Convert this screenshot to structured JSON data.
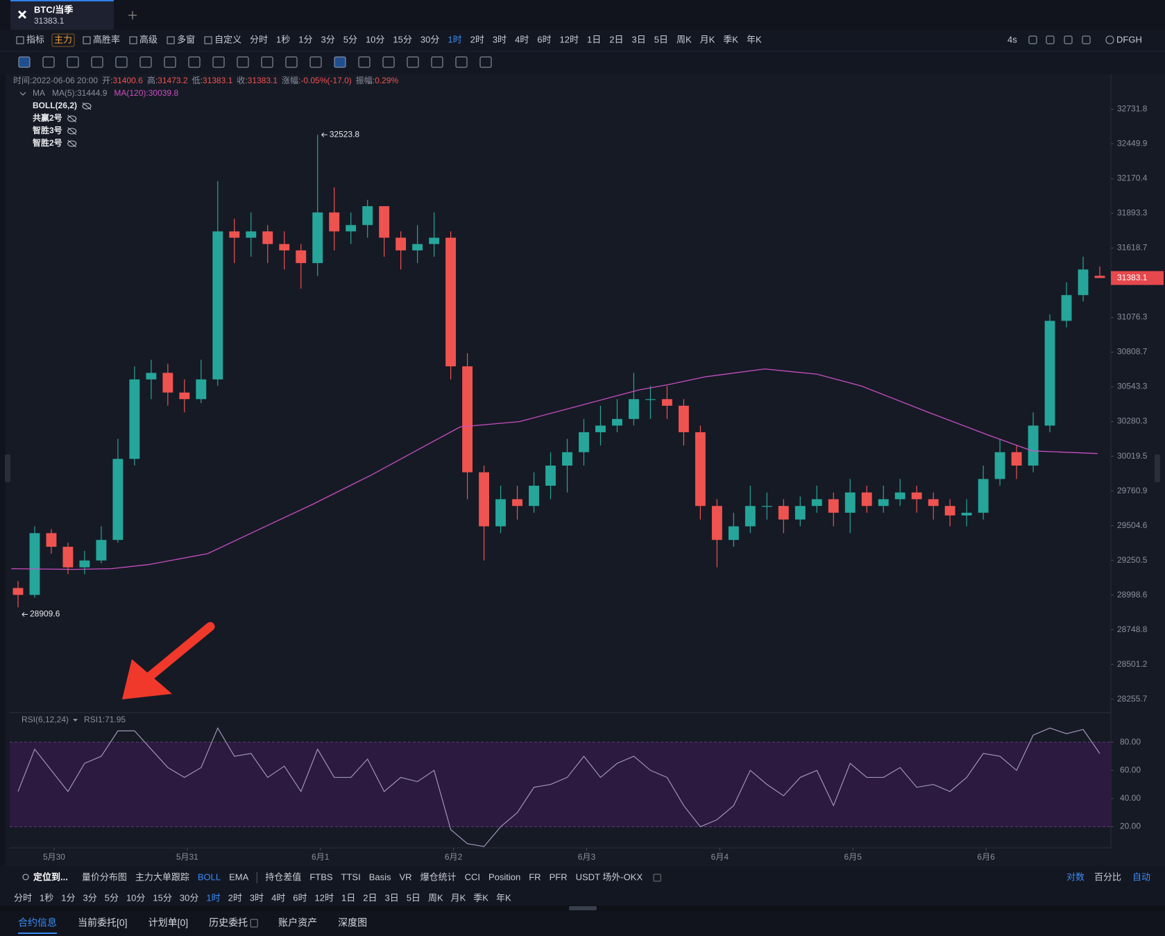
{
  "tab": {
    "symbol": "BTC/当季"
  },
  "toolbar": {
    "left": [
      "指标",
      "主力",
      "高胜率",
      "高级",
      "多窗",
      "自定义"
    ],
    "intervals": [
      "分时",
      "1秒",
      "1分",
      "3分",
      "5分",
      "10分",
      "15分",
      "30分",
      "1时",
      "2时",
      "3时",
      "4时",
      "6时",
      "12时",
      "1日",
      "2日",
      "3日",
      "5日",
      "周K",
      "月K",
      "季K",
      "年K"
    ],
    "right": [
      "4s",
      "DFGH"
    ]
  },
  "info": {
    "time_label": "时间:",
    "time": "2022-06-06 20:00",
    "open_label": "开:",
    "high_label": "高:",
    "low_label": "低:",
    "close_label": "收:",
    "change_label": "涨幅:",
    "change": "-0.05%(-17.0)",
    "amplitude_label": "振幅:",
    "amplitude": "0.29%"
  },
  "indicators": {
    "ma": "MA",
    "ma5": "MA(5):31444.9",
    "ma120": "MA(120):30039.8",
    "others": [
      "BOLL(26,2)",
      "共赢2号",
      "智胜3号",
      "智胜2号"
    ]
  },
  "chart_data": {
    "type": "candlestick",
    "yscale": "log",
    "up_color": "#26a69a",
    "down_color": "#ef5350",
    "x": [
      1.5,
      4.5,
      7.5,
      10.5,
      13.5,
      16.5,
      19.5,
      22.5,
      25.5,
      28.5,
      31.5,
      34.5,
      37.5,
      40.5,
      43.5,
      46.5,
      49.5,
      52.5,
      55.5,
      58.5,
      61.5,
      64.5,
      67.5,
      70.5,
      73.5,
      76.5,
      79.5,
      82.5,
      85.5,
      88.5,
      91.5,
      94.5,
      97.5,
      100.5,
      103.5,
      106.5,
      109.5,
      112.5,
      115.5,
      118.5,
      121.5,
      124.5,
      127.5,
      130.5,
      133.5,
      136.5,
      139.5,
      142.5,
      145.5,
      148.5,
      151.5,
      154.5,
      157.5,
      160.5,
      163.5,
      166.5,
      169.5,
      172.5,
      175.5,
      178.5,
      181.5,
      184.5,
      187.5,
      190.5,
      193.5,
      196.5
    ],
    "open": [
      29050,
      29000,
      29450,
      29350,
      29200,
      29250,
      29400,
      30000,
      30600,
      30650,
      30500,
      30450,
      30600,
      31750,
      31700,
      31750,
      31650,
      31600,
      31500,
      31900,
      31750,
      31800,
      31950,
      31700,
      31600,
      31650,
      31700,
      30700,
      29900,
      29500,
      29700,
      29650,
      29800,
      29950,
      30050,
      30200,
      30250,
      30300,
      30450,
      30450,
      30400,
      30200,
      29650,
      29400,
      29500,
      29650,
      29650,
      29550,
      29650,
      29700,
      29600,
      29750,
      29650,
      29700,
      29750,
      29700,
      29650,
      29580,
      29600,
      29850,
      30050,
      29950,
      30250,
      31050,
      31250,
      31400.6
    ],
    "high": [
      29100,
      29500,
      29480,
      29380,
      29320,
      29500,
      30150,
      30700,
      30750,
      30720,
      30600,
      30750,
      32150,
      31850,
      31900,
      31800,
      31750,
      31650,
      32523.8,
      32100,
      31900,
      32000,
      31950,
      31750,
      31800,
      31900,
      31750,
      30800,
      29950,
      29800,
      29800,
      29900,
      30050,
      30150,
      30300,
      30400,
      30450,
      30650,
      30550,
      30550,
      30450,
      30250,
      29700,
      29600,
      29800,
      29750,
      29700,
      29720,
      29800,
      29750,
      29850,
      29800,
      29800,
      29850,
      29800,
      29750,
      29700,
      29700,
      29950,
      30150,
      30100,
      30350,
      31100,
      31350,
      31550,
      31473.2
    ],
    "low": [
      28909.6,
      28980,
      29300,
      29150,
      29150,
      29230,
      29380,
      29950,
      30450,
      30400,
      30350,
      30420,
      30550,
      31500,
      31550,
      31500,
      31450,
      31300,
      31400,
      31600,
      31650,
      31700,
      31550,
      31450,
      31500,
      31550,
      30600,
      29700,
      29250,
      29450,
      29550,
      29600,
      29700,
      29750,
      29950,
      30100,
      30200,
      30250,
      30300,
      30300,
      30100,
      29550,
      29200,
      29350,
      29450,
      29550,
      29450,
      29500,
      29600,
      29500,
      29450,
      29600,
      29600,
      29650,
      29600,
      29550,
      29500,
      29500,
      29550,
      29800,
      29850,
      29900,
      30200,
      31000,
      31200,
      31383.1
    ],
    "close": [
      29000,
      29450,
      29350,
      29200,
      29250,
      29400,
      30000,
      30600,
      30650,
      30500,
      30450,
      30600,
      31750,
      31700,
      31750,
      31650,
      31600,
      31500,
      31900,
      31750,
      31800,
      31950,
      31700,
      31600,
      31650,
      31700,
      30700,
      29900,
      29500,
      29700,
      29650,
      29800,
      29950,
      30050,
      30200,
      30250,
      30300,
      30450,
      30450,
      30400,
      30200,
      29650,
      29400,
      29500,
      29650,
      29650,
      29550,
      29650,
      29700,
      29600,
      29750,
      29650,
      29700,
      29750,
      29700,
      29650,
      29580,
      29600,
      29850,
      30050,
      29950,
      30250,
      31050,
      31250,
      31450,
      31383.1
    ],
    "xlim": [
      0,
      198.5
    ],
    "xticks": [
      {
        "value": 8,
        "label": "5月30"
      },
      {
        "value": 32,
        "label": "5月31"
      },
      {
        "value": 56,
        "label": "6月1"
      },
      {
        "value": 80,
        "label": "6月2"
      },
      {
        "value": 104,
        "label": "6月3"
      },
      {
        "value": 128,
        "label": "6月4"
      },
      {
        "value": 152,
        "label": "6月5"
      },
      {
        "value": 176,
        "label": "6月6"
      }
    ],
    "ylim": [
      28166.8,
      33018
    ],
    "yticks": [
      32731.8,
      32449.9,
      32170.4,
      31893.3,
      31618.7,
      31076.3,
      30808.7,
      30543.3,
      30280.3,
      30019.5,
      29760.9,
      29504.6,
      29250.5,
      28998.6,
      28748.8,
      28501.2,
      28255.7
    ],
    "ma120": {
      "color": "#c94fc0",
      "x": [
        0.3,
        11.6,
        18.3,
        25.0,
        35.7,
        45.1,
        54.5,
        65.2,
        73.2,
        81.2,
        91.9,
        102.7,
        113.4,
        118.7,
        125.4,
        136.1,
        145.5,
        153.5,
        165.6,
        176.3,
        184.3,
        196.1
      ],
      "values": [
        29190,
        29185,
        29190,
        29220,
        29300,
        29480,
        29660,
        29880,
        30060,
        30240,
        30280,
        30400,
        30520,
        30560,
        30620,
        30680,
        30640,
        30550,
        30350,
        30180,
        30060,
        30039.8
      ]
    },
    "rsi": {
      "label": "RSI(6,12,24)",
      "current_label": "RSI1:",
      "color": "#a095b8",
      "band_color": "#2c1a40",
      "ylim": [
        6,
        100
      ],
      "yticks": [
        {
          "value": 80,
          "label": "80.00"
        },
        {
          "value": 60,
          "label": "60.00"
        },
        {
          "value": 40,
          "label": "40.00"
        },
        {
          "value": 20,
          "label": "20.00"
        }
      ],
      "values": [
        45,
        75,
        60,
        45,
        65,
        70,
        88,
        88,
        75,
        62,
        55,
        62,
        90,
        70,
        72,
        55,
        63,
        45,
        75,
        55,
        55,
        68,
        45,
        55,
        52,
        60,
        18,
        8,
        6,
        20,
        30,
        48,
        50,
        55,
        70,
        55,
        65,
        70,
        60,
        55,
        35,
        20,
        25,
        35,
        60,
        50,
        42,
        55,
        60,
        35,
        65,
        55,
        55,
        62,
        48,
        50,
        45,
        55,
        72,
        70,
        60,
        85,
        90,
        86,
        89,
        71.95
      ]
    }
  },
  "bottom": {
    "locate": "定位到...",
    "tools": [
      "量价分布图",
      "主力大单跟踪",
      "BOLL",
      "EMA",
      "持仓差值",
      "FTBS",
      "TTSI",
      "Basis",
      "VR",
      "爆仓统计",
      "CCI",
      "Position",
      "FR",
      "PFR",
      "USDT 场外-OKX"
    ],
    "right": [
      "对数",
      "百分比",
      "自动"
    ],
    "tabs": [
      "合约信息",
      "当前委托[0]",
      "计划单[0]",
      "历史委托",
      "账户资产",
      "深度图"
    ]
  }
}
